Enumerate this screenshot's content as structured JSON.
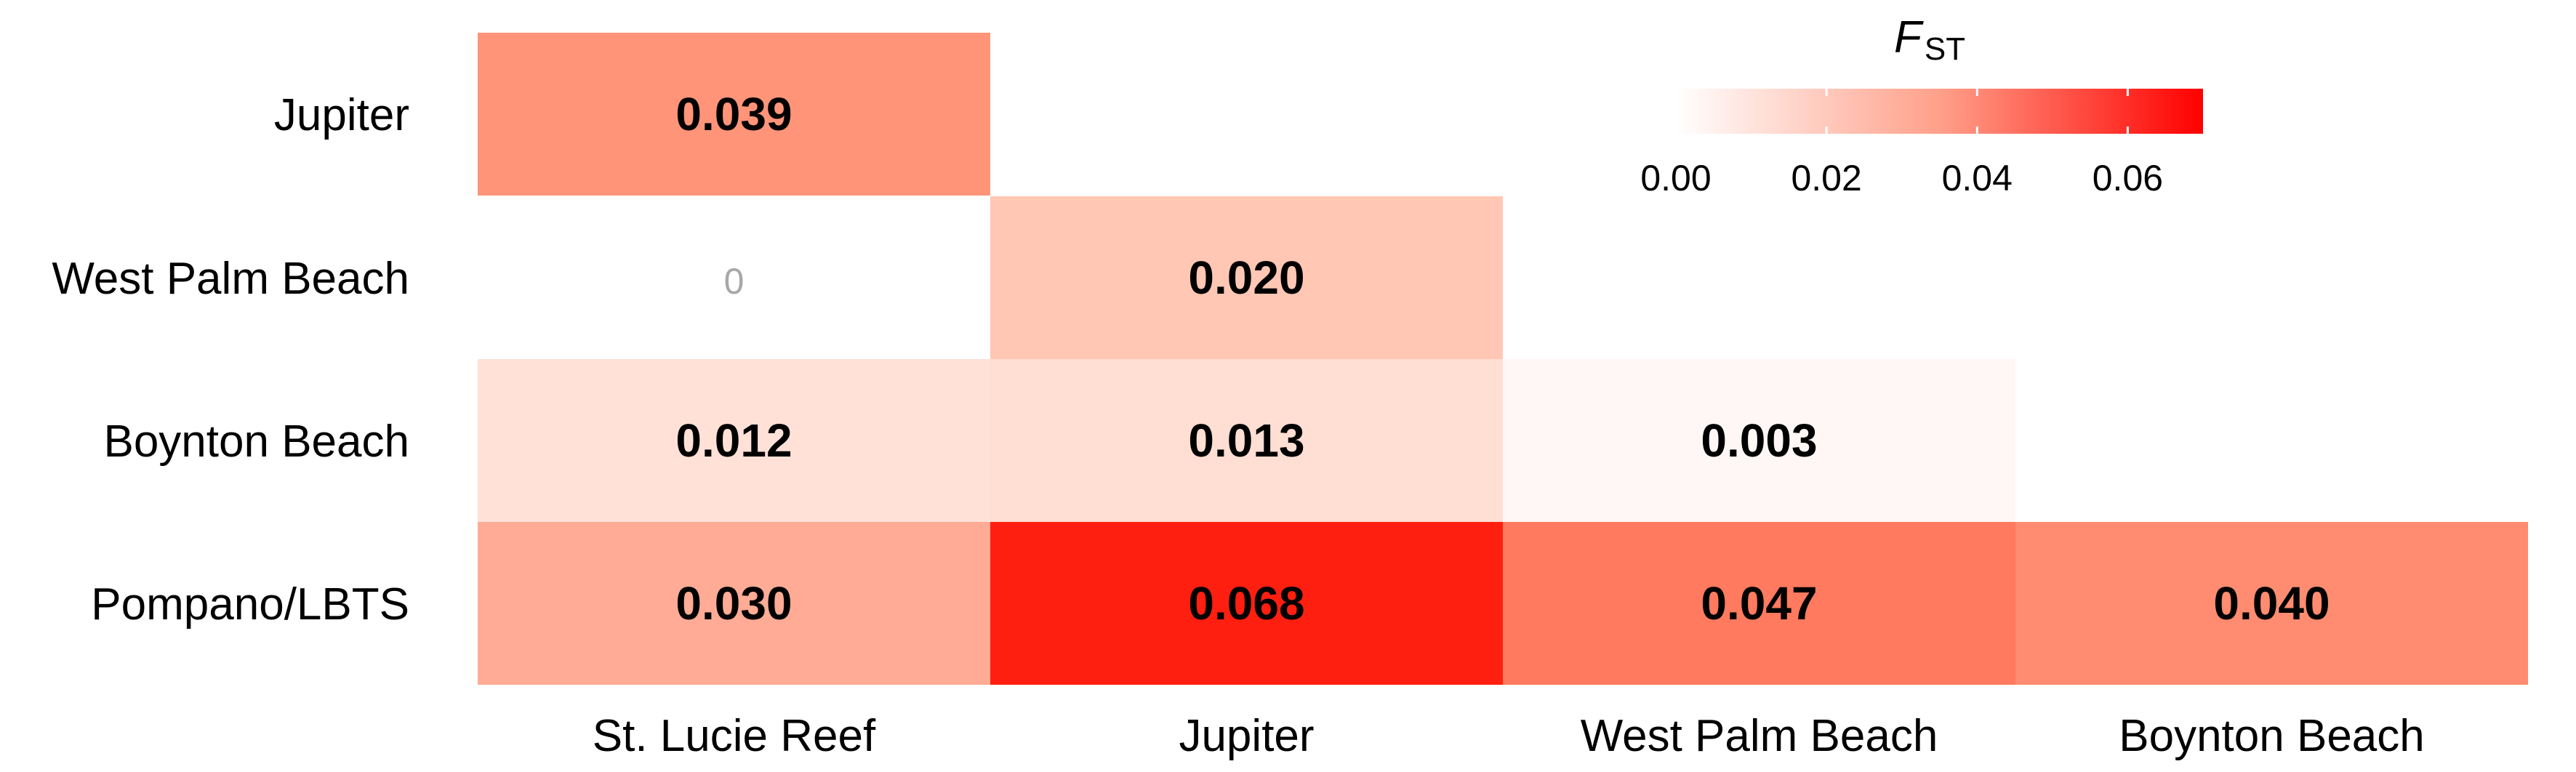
{
  "chart_data": {
    "type": "heatmap",
    "title": "",
    "rows": [
      "Jupiter",
      "West Palm Beach",
      "Boynton Beach",
      "Pompano/LBTS"
    ],
    "columns": [
      "St. Lucie Reef",
      "Jupiter",
      "West Palm Beach",
      "Boynton Beach"
    ],
    "cells": [
      {
        "row": "Jupiter",
        "col": "St. Lucie Reef",
        "value": 0.039,
        "label": "0.039",
        "significant": true
      },
      {
        "row": "West Palm Beach",
        "col": "St. Lucie Reef",
        "value": 0.0,
        "label": "0",
        "significant": false
      },
      {
        "row": "West Palm Beach",
        "col": "Jupiter",
        "value": 0.02,
        "label": "0.020",
        "significant": true
      },
      {
        "row": "Boynton Beach",
        "col": "St. Lucie Reef",
        "value": 0.012,
        "label": "0.012",
        "significant": true
      },
      {
        "row": "Boynton Beach",
        "col": "Jupiter",
        "value": 0.013,
        "label": "0.013",
        "significant": true
      },
      {
        "row": "Boynton Beach",
        "col": "West Palm Beach",
        "value": 0.003,
        "label": "0.003",
        "significant": true
      },
      {
        "row": "Pompano/LBTS",
        "col": "St. Lucie Reef",
        "value": 0.03,
        "label": "0.030",
        "significant": true
      },
      {
        "row": "Pompano/LBTS",
        "col": "Jupiter",
        "value": 0.068,
        "label": "0.068",
        "significant": true
      },
      {
        "row": "Pompano/LBTS",
        "col": "West Palm Beach",
        "value": 0.047,
        "label": "0.047",
        "significant": true
      },
      {
        "row": "Pompano/LBTS",
        "col": "Boynton Beach",
        "value": 0.04,
        "label": "0.040",
        "significant": true
      }
    ],
    "legend": {
      "title_main": "F",
      "title_sub": "ST",
      "ticks": [
        "0.00",
        "0.02",
        "0.04",
        "0.06"
      ],
      "tick_values": [
        0.0,
        0.02,
        0.04,
        0.06
      ],
      "range": [
        0.0,
        0.07
      ],
      "placement": "top-right"
    },
    "color_scale": {
      "low": "#ffffff",
      "high": "#ff0000"
    },
    "colors": {
      "Jupiter|St. Lucie Reef": "#ff9479",
      "West Palm Beach|Jupiter": "#ffc7b4",
      "Boynton Beach|St. Lucie Reef": "#ffe1d8",
      "Boynton Beach|Jupiter": "#ffded3",
      "Boynton Beach|West Palm Beach": "#fff7f5",
      "Pompano/LBTS|St. Lucie Reef": "#ffab95",
      "Pompano/LBTS|Jupiter": "#ff1f10",
      "Pompano/LBTS|West Palm Beach": "#ff7a5e",
      "Pompano/LBTS|Boynton Beach": "#ff8c70"
    }
  }
}
